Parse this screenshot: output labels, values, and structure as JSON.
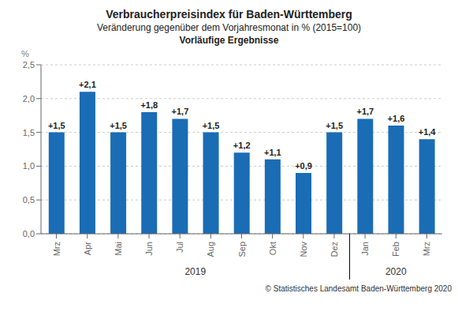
{
  "chart_data": {
    "type": "bar",
    "title": "Verbraucherpreisindex für Baden-Württemberg",
    "subtitle": [
      "Veränderung gegenüber dem Vorjahresmonat in % (2015=100)",
      "Vorläufige Ergebnisse"
    ],
    "ylabel": "%",
    "categories": [
      "Mrz",
      "Apr",
      "Mai",
      "Jun",
      "Jul",
      "Aug",
      "Sep",
      "Okt",
      "Nov",
      "Dez",
      "Jan",
      "Feb",
      "Mrz"
    ],
    "values": [
      1.5,
      2.1,
      1.5,
      1.8,
      1.7,
      1.5,
      1.2,
      1.1,
      0.9,
      1.5,
      1.7,
      1.6,
      1.4
    ],
    "value_labels": [
      "+1,5",
      "+2,1",
      "+1,5",
      "+1,8",
      "+1,7",
      "+1,5",
      "+1,2",
      "+1,1",
      "+0,9",
      "+1,5",
      "+1,7",
      "+1,6",
      "+1,4"
    ],
    "data_labels": true,
    "year_groups": [
      {
        "label": "2019",
        "size": 10
      },
      {
        "label": "2020",
        "size": 3
      }
    ],
    "color": "#1a6cb5",
    "ylim": [
      0,
      2.5
    ],
    "yticks": [
      {
        "value": 0.0,
        "label": "0,0"
      },
      {
        "value": 0.5,
        "label": "0,5"
      },
      {
        "value": 1.0,
        "label": "1,0"
      },
      {
        "value": 1.5,
        "label": "1,5"
      },
      {
        "value": 2.0,
        "label": "2,0"
      },
      {
        "value": 2.5,
        "label": "2,5"
      }
    ],
    "grid": true,
    "annotations": [
      "© Statistisches Landesamt Baden-Württemberg 2020"
    ]
  }
}
